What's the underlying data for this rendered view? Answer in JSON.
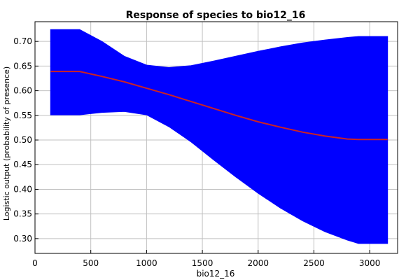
{
  "chart_data": {
    "type": "area",
    "title": "Response of species to bio12_16",
    "xlabel": "bio12_16",
    "ylabel": "Logistic output (probability of presence)",
    "xlim": [
      0,
      3250
    ],
    "ylim": [
      0.27,
      0.74
    ],
    "xticks": [
      0,
      500,
      1000,
      1500,
      2000,
      2500,
      3000
    ],
    "yticks": [
      0.3,
      0.35,
      0.4,
      0.45,
      0.5,
      0.55,
      0.6,
      0.65,
      0.7
    ],
    "grid": true,
    "series": [
      {
        "type": "line",
        "color": "#cc2222",
        "x": [
          140,
          400,
          600,
          800,
          1000,
          1200,
          1400,
          1600,
          1800,
          2000,
          2200,
          2400,
          2600,
          2800,
          2900,
          3160
        ],
        "y": [
          0.639,
          0.639,
          0.629,
          0.618,
          0.605,
          0.592,
          0.578,
          0.564,
          0.55,
          0.537,
          0.526,
          0.516,
          0.508,
          0.502,
          0.501,
          0.501
        ]
      },
      {
        "type": "band",
        "color": "#0000ff",
        "x": [
          140,
          400,
          600,
          800,
          1000,
          1200,
          1400,
          1600,
          1800,
          2000,
          2200,
          2400,
          2600,
          2800,
          2900,
          3160
        ],
        "upper": [
          0.724,
          0.724,
          0.7,
          0.67,
          0.652,
          0.647,
          0.651,
          0.66,
          0.67,
          0.68,
          0.689,
          0.697,
          0.703,
          0.708,
          0.71,
          0.71
        ],
        "lower": [
          0.551,
          0.551,
          0.556,
          0.558,
          0.551,
          0.527,
          0.496,
          0.46,
          0.425,
          0.392,
          0.362,
          0.336,
          0.314,
          0.297,
          0.29,
          0.29
        ]
      }
    ]
  }
}
